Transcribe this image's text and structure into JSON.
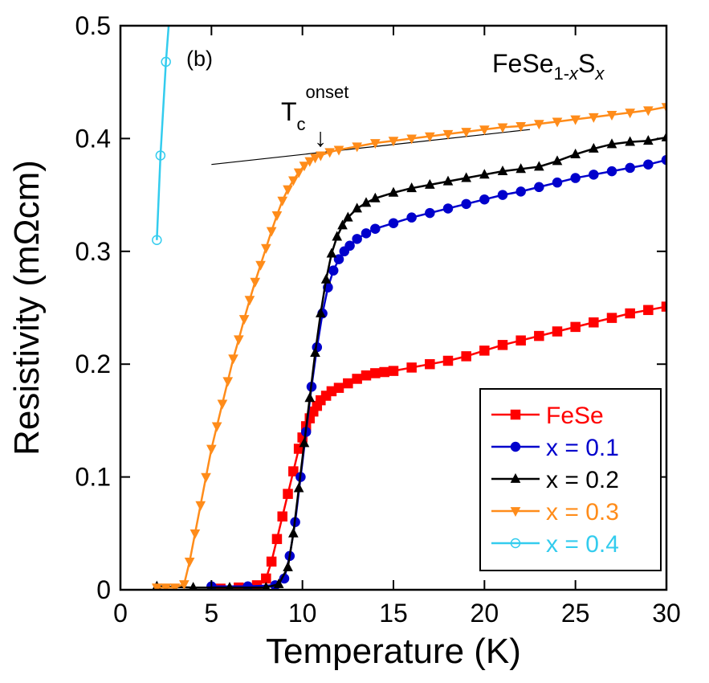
{
  "chart_data": {
    "type": "line",
    "panel_label": "(b)",
    "formula": {
      "base": "FeSe",
      "sub1": "1-",
      "subx": "x",
      "mid": "S",
      "subx2": "x"
    },
    "annotation": {
      "t": "T",
      "sub": "c",
      "sup": "onset",
      "arrow": "↓"
    },
    "xlabel": "Temperature (K)",
    "ylabel": "Resistivity (mΩcm)",
    "xlim": [
      0,
      30
    ],
    "ylim": [
      0,
      0.5
    ],
    "xticks": [
      "0",
      "5",
      "10",
      "15",
      "20",
      "25",
      "30"
    ],
    "yticks": [
      "0",
      "0.1",
      "0.2",
      "0.3",
      "0.4",
      "0.5"
    ],
    "legend_position": "bottom-right",
    "series": [
      {
        "name": "FeSe",
        "color": "#ff0000",
        "marker": "square",
        "filled": true,
        "x": [
          5.5,
          6.5,
          7.5,
          8.0,
          8.3,
          8.6,
          8.9,
          9.2,
          9.5,
          9.8,
          10.0,
          10.2,
          10.4,
          10.6,
          10.8,
          11.0,
          11.3,
          11.6,
          12.0,
          12.5,
          13.0,
          13.5,
          14.0,
          14.5,
          15.0,
          16.0,
          17.0,
          18.0,
          19.0,
          20.0,
          21.0,
          22.0,
          23.0,
          24.0,
          25.0,
          26.0,
          27.0,
          28.0,
          29.0,
          30.0
        ],
        "y": [
          0.001,
          0.002,
          0.004,
          0.01,
          0.025,
          0.045,
          0.065,
          0.085,
          0.105,
          0.125,
          0.135,
          0.145,
          0.152,
          0.158,
          0.163,
          0.168,
          0.172,
          0.176,
          0.179,
          0.183,
          0.187,
          0.19,
          0.192,
          0.193,
          0.194,
          0.197,
          0.2,
          0.203,
          0.207,
          0.212,
          0.217,
          0.221,
          0.225,
          0.229,
          0.233,
          0.237,
          0.241,
          0.245,
          0.248,
          0.251
        ]
      },
      {
        "name": "x = 0.1",
        "color": "#0000cc",
        "marker": "circle",
        "filled": true,
        "x": [
          5.0,
          7.0,
          8.5,
          9.0,
          9.3,
          9.6,
          9.9,
          10.2,
          10.5,
          10.8,
          11.1,
          11.4,
          11.7,
          12.0,
          12.3,
          12.6,
          13.0,
          13.5,
          14.0,
          15.0,
          16.0,
          17.0,
          18.0,
          19.0,
          20.0,
          21.0,
          22.0,
          23.0,
          24.0,
          25.0,
          26.0,
          27.0,
          28.0,
          29.0,
          30.0
        ],
        "y": [
          0.003,
          0.003,
          0.004,
          0.01,
          0.03,
          0.06,
          0.1,
          0.14,
          0.18,
          0.215,
          0.245,
          0.268,
          0.283,
          0.293,
          0.3,
          0.305,
          0.311,
          0.316,
          0.32,
          0.325,
          0.33,
          0.334,
          0.338,
          0.342,
          0.346,
          0.35,
          0.353,
          0.357,
          0.361,
          0.365,
          0.368,
          0.371,
          0.374,
          0.377,
          0.381
        ]
      },
      {
        "name": "x = 0.2",
        "color": "#000000",
        "marker": "triangle-up",
        "filled": true,
        "x": [
          2.0,
          4.0,
          6.0,
          8.0,
          8.7,
          9.2,
          9.5,
          9.8,
          10.1,
          10.4,
          10.7,
          11.0,
          11.3,
          11.6,
          11.9,
          12.2,
          12.5,
          13.0,
          13.5,
          14.0,
          15.0,
          16.0,
          17.0,
          18.0,
          19.0,
          20.0,
          21.0,
          22.0,
          23.0,
          24.0,
          25.0,
          26.0,
          27.0,
          28.0,
          29.0,
          30.0
        ],
        "y": [
          0.003,
          0.002,
          0.002,
          0.002,
          0.005,
          0.02,
          0.05,
          0.09,
          0.13,
          0.17,
          0.21,
          0.245,
          0.275,
          0.298,
          0.313,
          0.323,
          0.33,
          0.338,
          0.343,
          0.347,
          0.352,
          0.356,
          0.359,
          0.362,
          0.365,
          0.368,
          0.371,
          0.373,
          0.375,
          0.38,
          0.386,
          0.391,
          0.395,
          0.397,
          0.398,
          0.401
        ]
      },
      {
        "name": "x = 0.3",
        "color": "#ff8c1a",
        "marker": "triangle-down",
        "filled": true,
        "x": [
          2.0,
          2.5,
          3.0,
          3.5,
          3.8,
          4.1,
          4.4,
          4.7,
          5.0,
          5.3,
          5.6,
          5.9,
          6.2,
          6.5,
          6.8,
          7.1,
          7.4,
          7.7,
          8.0,
          8.3,
          8.6,
          8.9,
          9.2,
          9.5,
          9.8,
          10.1,
          10.4,
          10.7,
          11.0,
          11.5,
          12.0,
          13.0,
          14.0,
          15.0,
          16.0,
          17.0,
          18.0,
          19.0,
          20.0,
          21.0,
          22.0,
          23.0,
          24.0,
          25.0,
          26.0,
          27.0,
          28.0,
          29.0,
          30.0
        ],
        "y": [
          0.002,
          0.002,
          0.002,
          0.005,
          0.025,
          0.05,
          0.075,
          0.1,
          0.125,
          0.145,
          0.165,
          0.185,
          0.205,
          0.222,
          0.24,
          0.257,
          0.273,
          0.288,
          0.303,
          0.318,
          0.332,
          0.345,
          0.355,
          0.363,
          0.37,
          0.376,
          0.38,
          0.383,
          0.385,
          0.388,
          0.39,
          0.393,
          0.396,
          0.398,
          0.4,
          0.402,
          0.404,
          0.406,
          0.408,
          0.41,
          0.411,
          0.413,
          0.415,
          0.417,
          0.419,
          0.421,
          0.423,
          0.425,
          0.428
        ]
      },
      {
        "name": "x = 0.4",
        "color": "#33ccee",
        "marker": "circle",
        "filled": false,
        "x": [
          2.0,
          2.2,
          2.5,
          2.65
        ],
        "y": [
          0.31,
          0.385,
          0.468,
          0.5
        ]
      }
    ],
    "guide_line": {
      "x": [
        5.0,
        22.5
      ],
      "y": [
        0.377,
        0.408
      ]
    }
  }
}
